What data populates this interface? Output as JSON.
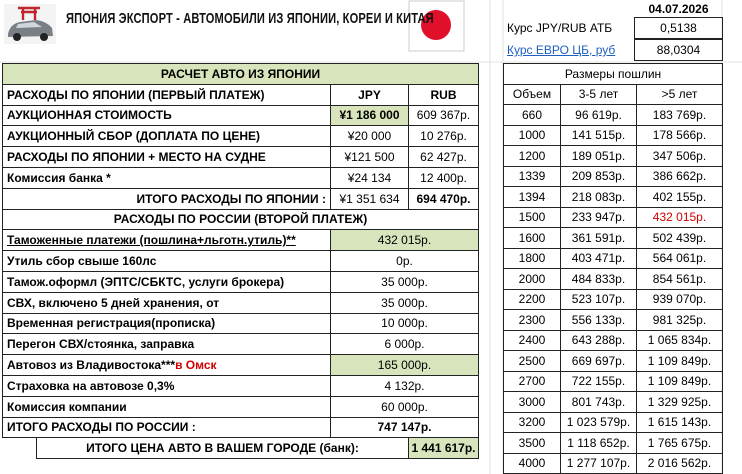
{
  "header": {
    "title": "ЯПОНИЯ  ЭКСПОРТ - АВТОМОБИЛИ ИЗ ЯПОНИИ, КОРЕИ И КИТАЯ",
    "date": "04.07.2026"
  },
  "rates": [
    {
      "label": "Курс JPY/RUB АТБ",
      "value": "0,5138"
    },
    {
      "label": "Курс ЕВРО ЦБ, руб",
      "value": "88,0304"
    }
  ],
  "calc": {
    "title": "РАСЧЕТ АВТО ИЗ ЯПОНИИ",
    "japan": {
      "header": [
        "РАСХОДЫ ПО ЯПОНИИ (ПЕРВЫЙ ПЛАТЕЖ)",
        "JPY",
        "RUB"
      ],
      "rows": [
        [
          "АУКЦИОННАЯ СТОИМОСТЬ",
          "¥1 186 000",
          "609 367р."
        ],
        [
          "АУКЦИОННЫЙ СБОР (ДОПЛАТА ПО ЦЕНЕ)",
          "¥20 000",
          "10 276р."
        ],
        [
          "РАСХОДЫ ПО ЯПОНИИ + МЕСТО НА СУДНЕ",
          "¥121 500",
          "62 427р."
        ],
        [
          "Комиссия банка *",
          "¥24 134",
          "12 400р."
        ]
      ],
      "total": [
        "ИТОГО РАСХОДЫ ПО ЯПОНИИ :",
        "¥1 351 634",
        "694 470р."
      ]
    },
    "russia": {
      "title": "РАСХОДЫ ПО РОССИИ (ВТОРОЙ ПЛАТЕЖ)",
      "rows": [
        {
          "label": "Таможенные платежи (пошлина+льготн.утиль)**",
          "value": "432 015р."
        },
        {
          "label": "Утиль сбор свыше 160лс",
          "value": "0р."
        },
        {
          "label": "Тамож.оформл (ЭПТС/СБКТС, услуги брокера)",
          "value": "35 000р."
        },
        {
          "label": "СВХ, включено 5 дней хранения, от",
          "value": "35 000р."
        },
        {
          "label": "Временная регистрация(прописка)",
          "value": "10 000р."
        },
        {
          "label": "Перегон СВХ/стоянка, заправка",
          "value": "6 000р."
        },
        {
          "label": "Автовоз из Владивостока***",
          "note": "в Омск",
          "value": "165 000р."
        },
        {
          "label": "Страховка на автовозе 0,3%",
          "value": "4 132р."
        },
        {
          "label": "Комиссия компании",
          "value": "60 000р."
        }
      ],
      "total": [
        "ИТОГО РАСХОДЫ ПО РОССИИ :",
        "747 147р."
      ],
      "grand_total": [
        "ИТОГО ЦЕНА АВТО В ВАШЕМ ГОРОДЕ (банк):",
        "1 441 617р."
      ]
    }
  },
  "duties": {
    "title": "Размеры пошлин",
    "columns": [
      "Объем",
      "3-5 лет",
      ">5 лет"
    ],
    "rows": [
      [
        "660",
        "96 619р.",
        "183 769р."
      ],
      [
        "1000",
        "141 515р.",
        "178 566р."
      ],
      [
        "1200",
        "189 051р.",
        "347 506р."
      ],
      [
        "1339",
        "209 853р.",
        "386 662р."
      ],
      [
        "1394",
        "218 083р.",
        "402 155р."
      ],
      [
        "1500",
        "233 947р.",
        "432 015р."
      ],
      [
        "1600",
        "361 591р.",
        "502 439р."
      ],
      [
        "1800",
        "403 471р.",
        "564 061р."
      ],
      [
        "2000",
        "484 833р.",
        "854 561р."
      ],
      [
        "2200",
        "523 107р.",
        "939 070р."
      ],
      [
        "2300",
        "556 133р.",
        "981 325р."
      ],
      [
        "2400",
        "643 288р.",
        "1 065 834р."
      ],
      [
        "2500",
        "669 697р.",
        "1 109 849р."
      ],
      [
        "2700",
        "722 155р.",
        "1 109 849р."
      ],
      [
        "3000",
        "801 743р.",
        "1 329 925р."
      ],
      [
        "3200",
        "1 023 579р.",
        "1 615 143р."
      ],
      [
        "3500",
        "1 118 652р.",
        "1 765 675р."
      ],
      [
        "4000",
        "1 277 107р.",
        "2 016 562р."
      ]
    ]
  }
}
